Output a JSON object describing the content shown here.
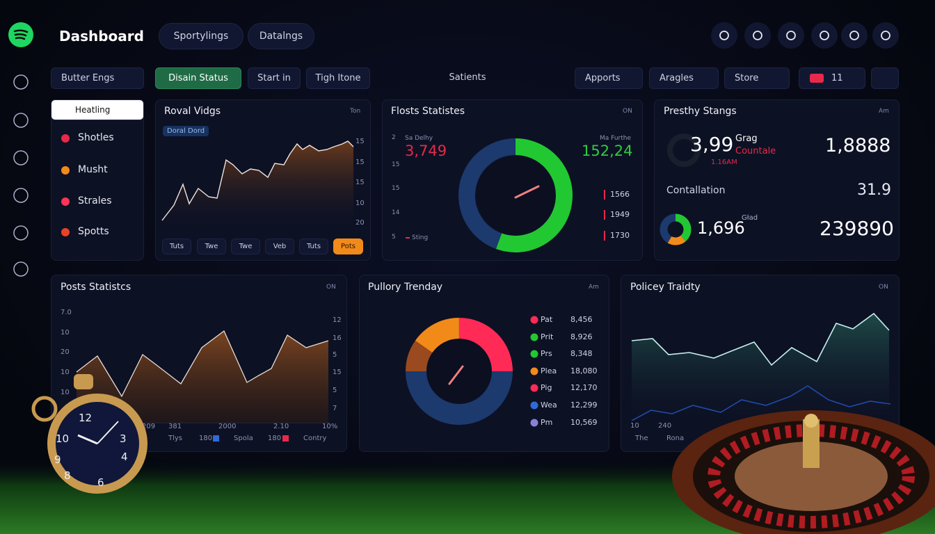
{
  "header": {
    "title": "Dashboard",
    "tabs": [
      "Sportylings",
      "Datalngs"
    ]
  },
  "toolbar": {
    "filter": "Butter Engs",
    "status": "Disain Status",
    "buttons": [
      "Start in",
      "Tigh Itone"
    ],
    "center": "Satients",
    "dropdowns": [
      "Apports",
      "Aragles",
      "Store"
    ],
    "count": "11"
  },
  "menu": {
    "search": "Heatling",
    "items": [
      "Shotles",
      "Musht",
      "Strales",
      "Spotts"
    ]
  },
  "card1": {
    "title": "Roval Vidgs",
    "menu": "Ton",
    "badge": "Doral Dord",
    "axis": [
      "15",
      "15",
      "15",
      "10",
      "20"
    ],
    "tabs": [
      "Tuts",
      "Twe",
      "Twe",
      "Veb",
      "Tuts",
      "Pots"
    ]
  },
  "card2": {
    "title": "Flosts Statistes",
    "menu": "ON",
    "left_label": "Sa Delhy",
    "left_value": "3,749",
    "right_label": "Ma Furthe",
    "right_value": "152,24",
    "axis": [
      "2",
      "15",
      "15",
      "14",
      "5"
    ],
    "legend": "Sting",
    "list": [
      "1566",
      "1949",
      "1730"
    ]
  },
  "card3": {
    "title": "Presthy Stangs",
    "menu": "Am",
    "value1": "3,99",
    "label1": "Grag",
    "label2": "Countale",
    "time": "1.16AM",
    "value2": "1,8888",
    "label3": "Contallation",
    "value3": "31.9",
    "value4": "1,696",
    "label4": "Gład",
    "value5": "239890"
  },
  "card4": {
    "title": "Posts Statistcs",
    "menu": "ON",
    "axis_left": [
      "7.0",
      "10",
      "20",
      "10",
      "10"
    ],
    "axis_right": [
      "12",
      "16",
      "5",
      "15",
      "5",
      "7"
    ],
    "x": [
      "209",
      "381",
      "2000",
      "2.10",
      "10%"
    ],
    "legend": [
      "Tlys",
      "180",
      "Spola",
      "180",
      "Contry"
    ]
  },
  "card5": {
    "title": "Pullory Trenday",
    "menu": "Am",
    "legend": [
      {
        "name": "Pat",
        "value": "8,456"
      },
      {
        "name": "Prit",
        "value": "8,926"
      },
      {
        "name": "Prs",
        "value": "8,348"
      },
      {
        "name": "Plea",
        "value": "18,080"
      },
      {
        "name": "Pig",
        "value": "12,170"
      },
      {
        "name": "Wea",
        "value": "12,299"
      },
      {
        "name": "Pm",
        "value": "10,569"
      }
    ]
  },
  "card6": {
    "title": "Policey Traidty",
    "menu": "ON",
    "x": [
      "10",
      "240"
    ],
    "legend": [
      "The",
      "Rona"
    ]
  },
  "clock": {
    "numerals": [
      "12",
      "3",
      "6",
      "9",
      "10",
      "8",
      "4"
    ]
  }
}
